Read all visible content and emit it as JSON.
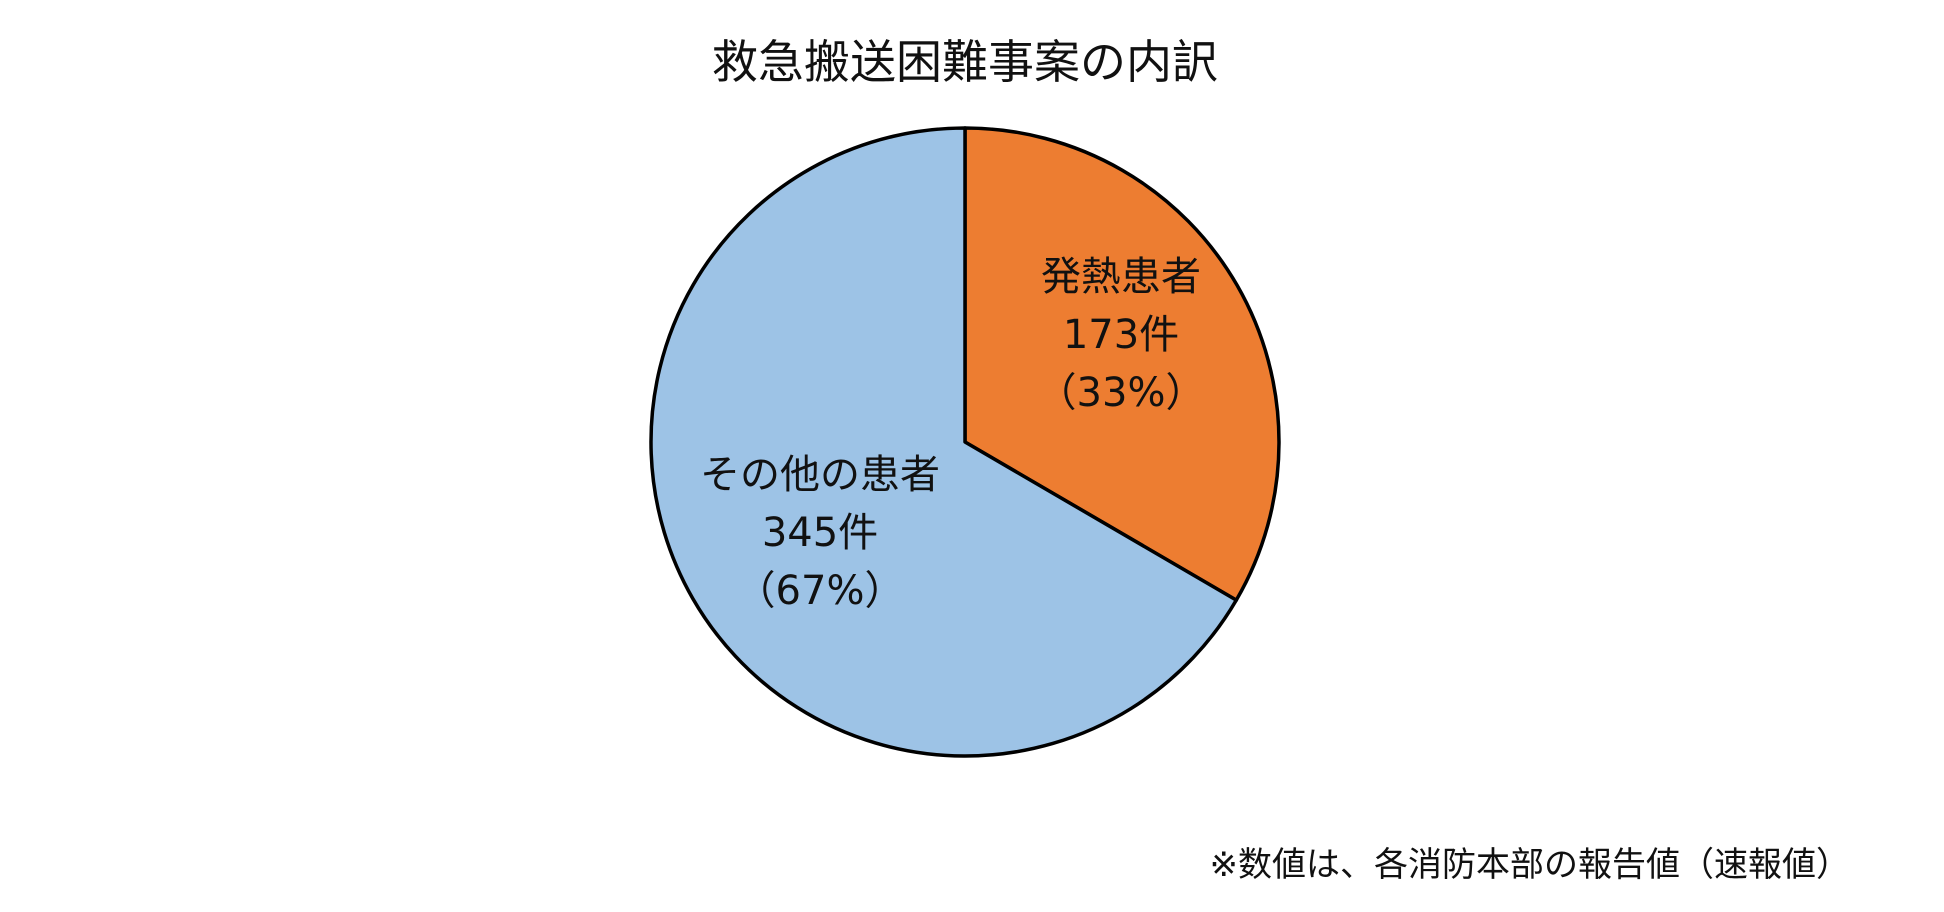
{
  "chart_data": {
    "type": "pie",
    "title": "救急搬送困難事案の内訳",
    "slices": [
      {
        "name": "発熱患者",
        "value": 173,
        "value_label": "173件",
        "percent_label": "（33%）",
        "color": "#ED7D31"
      },
      {
        "name": "その他の患者",
        "value": 345,
        "value_label": "345件",
        "percent_label": "（67%）",
        "color": "#9DC3E6"
      }
    ],
    "start_direction": "12 o'clock",
    "order": "clockwise",
    "outline_color": "#000000",
    "legend": "none",
    "footnote": "※数値は、各消防本部の報告値（速報値）"
  }
}
